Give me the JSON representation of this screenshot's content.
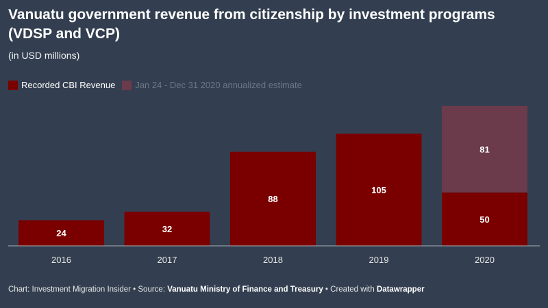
{
  "title": "Vanuatu government revenue from citizenship by investment programs (VDSP and VCP)",
  "subtitle": "(in USD millions)",
  "legend": {
    "recorded": "Recorded CBI Revenue",
    "estimate": "Jan 24 - Dec 31 2020 annualized estimate"
  },
  "colors": {
    "recorded": "#7a0000",
    "estimate": "#6b3a4b",
    "background": "#333f50"
  },
  "footer": {
    "prefix": "Chart: Investment Migration Insider • Source: ",
    "source": "Vanuatu Ministry of Finance and Treasury",
    "middle": " • Created with ",
    "tool": "Datawrapper"
  },
  "chart_data": {
    "type": "bar",
    "stacked": true,
    "categories": [
      "2016",
      "2017",
      "2018",
      "2019",
      "2020"
    ],
    "series": [
      {
        "name": "Recorded CBI Revenue",
        "values": [
          24,
          32,
          88,
          105,
          50
        ],
        "color": "#7a0000"
      },
      {
        "name": "Jan 24 - Dec 31 2020 annualized estimate",
        "values": [
          0,
          0,
          0,
          0,
          81
        ],
        "color": "#6b3a4b"
      }
    ],
    "title": "Vanuatu government revenue from citizenship by investment programs (VDSP and VCP)",
    "ylabel": "",
    "xlabel": "",
    "ylim": [
      0,
      131
    ],
    "grid": false,
    "legend_position": "top-left"
  }
}
